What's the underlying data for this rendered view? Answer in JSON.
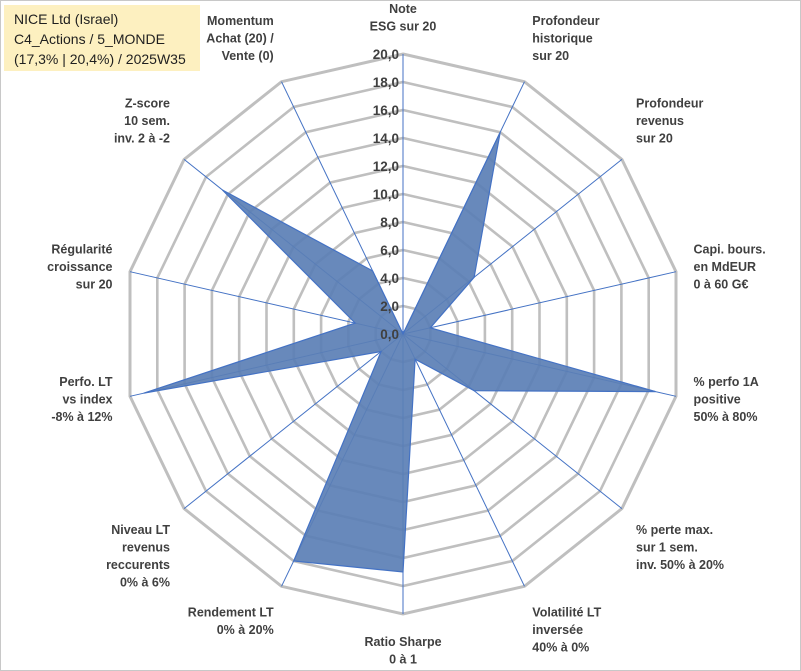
{
  "info": {
    "line1": "NICE Ltd (Israel)",
    "line2": "C4_Actions / 5_MONDE",
    "line3": "(17,3% | 20,4%) / 2025W35"
  },
  "colors": {
    "fill": "#5b7fb5",
    "stroke": "#4472c4",
    "grid": "#bfbfbf",
    "spoke": "#4472c4",
    "info_bg": "#fdf0c0"
  },
  "chart_data": {
    "type": "radar",
    "rmin": 0,
    "rmax": 20,
    "ticks": [
      "0,0",
      "2,0",
      "4,0",
      "6,0",
      "8,0",
      "10,0",
      "12,0",
      "14,0",
      "16,0",
      "18,0",
      "20,0"
    ],
    "axes": [
      {
        "label": [
          "Note",
          "ESG sur 20"
        ],
        "value": 0
      },
      {
        "label": [
          "Profondeur",
          "historique",
          "sur 20"
        ],
        "value": 16
      },
      {
        "label": [
          "Profondeur",
          "revenus",
          "sur 20"
        ],
        "value": 6.5
      },
      {
        "label": [
          "Capi. bours.",
          "en MdEUR",
          "0 à 60 G€"
        ],
        "value": 2
      },
      {
        "label": [
          "% perfo 1A",
          "positive",
          "50% à 80%"
        ],
        "value": 18.5
      },
      {
        "label": [
          "% perte max.",
          "sur 1 sem.",
          "inv. 50% à 20%"
        ],
        "value": 6.5
      },
      {
        "label": [
          "Volatilité LT",
          "inversée",
          "40% à 0%"
        ],
        "value": 2
      },
      {
        "label": [
          "Ratio Sharpe",
          "0 à 1"
        ],
        "value": 17
      },
      {
        "label": [
          "Rendement LT",
          "0% à 20%"
        ],
        "value": 18
      },
      {
        "label": [
          "Niveau LT",
          "revenus",
          "reccurents",
          "0% à 6%"
        ],
        "value": 2
      },
      {
        "label": [
          "Perfo. LT",
          "vs index",
          "-8% à 12%"
        ],
        "value": 19
      },
      {
        "label": [
          "Régularité",
          "croissance",
          "sur 20"
        ],
        "value": 3.5
      },
      {
        "label": [
          "Z-score",
          "10 sem.",
          "inv. 2 à -2"
        ],
        "value": 16.5
      },
      {
        "label": [
          "Momentum",
          "Achat (20) /",
          "Vente (0)"
        ],
        "value": 5
      }
    ]
  }
}
